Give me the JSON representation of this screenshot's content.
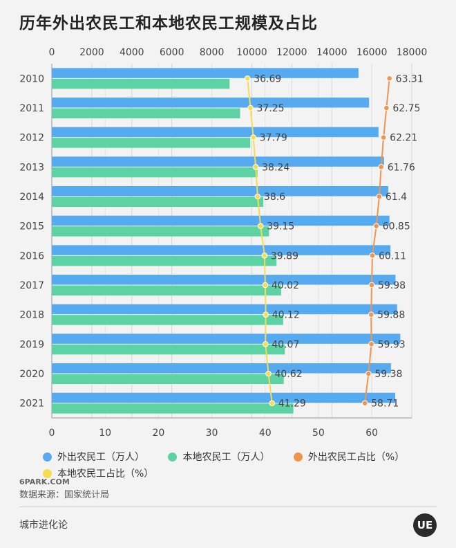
{
  "title": "历年外出农民工和本地农民工规模及占比",
  "chart_data": {
    "type": "bar",
    "orientation": "horizontal",
    "categories": [
      "2010",
      "2011",
      "2012",
      "2013",
      "2014",
      "2015",
      "2016",
      "2017",
      "2018",
      "2019",
      "2020",
      "2021"
    ],
    "top_axis": {
      "ticks": [
        "0",
        "2000",
        "4000",
        "6000",
        "8000",
        "10000",
        "12000",
        "14000",
        "16000",
        "18000"
      ],
      "range": [
        0,
        18000
      ]
    },
    "bottom_axis": {
      "ticks": [
        "0",
        "10",
        "20",
        "30",
        "40",
        "50",
        "60"
      ],
      "range": [
        0,
        67.5
      ]
    },
    "series": [
      {
        "name": "外出农民工（万人）",
        "kind": "bar",
        "color": "#56aaf0",
        "values": [
          15335,
          15863,
          16336,
          16610,
          16821,
          16884,
          16934,
          17185,
          17266,
          17425,
          16959,
          17172
        ]
      },
      {
        "name": "本地农民工（万人）",
        "kind": "bar",
        "color": "#5dd3a4",
        "values": [
          8888,
          9415,
          9925,
          10284,
          10574,
          10863,
          11237,
          11467,
          11570,
          11652,
          11601,
          12079
        ]
      },
      {
        "name": "外出农民工占比（%）",
        "kind": "line",
        "color": "#f0944e",
        "values": [
          63.31,
          62.75,
          62.21,
          61.76,
          61.4,
          60.85,
          60.11,
          59.98,
          59.88,
          59.93,
          59.38,
          58.71
        ],
        "labels": [
          "63.31",
          "62.75",
          "62.21",
          "61.76",
          "61.4",
          "60.85",
          "60.11",
          "59.98",
          "59.88",
          "59.93",
          "59.38",
          "58.71"
        ]
      },
      {
        "name": "本地农民工占比（%）",
        "kind": "line",
        "color": "#f7dc52",
        "values": [
          36.69,
          37.25,
          37.79,
          38.24,
          38.6,
          39.15,
          39.89,
          40.02,
          40.12,
          40.07,
          40.62,
          41.29
        ],
        "labels": [
          "36.69",
          "37.25",
          "37.79",
          "38.24",
          "38.6",
          "39.15",
          "39.89",
          "40.02",
          "40.12",
          "40.07",
          "40.62",
          "41.29"
        ]
      }
    ],
    "legend_position": "bottom",
    "grid": true
  },
  "source": "数据来源：国家统计局",
  "brand": "城市进化论",
  "logo": "UE",
  "watermark_text": "6PARK.COM"
}
